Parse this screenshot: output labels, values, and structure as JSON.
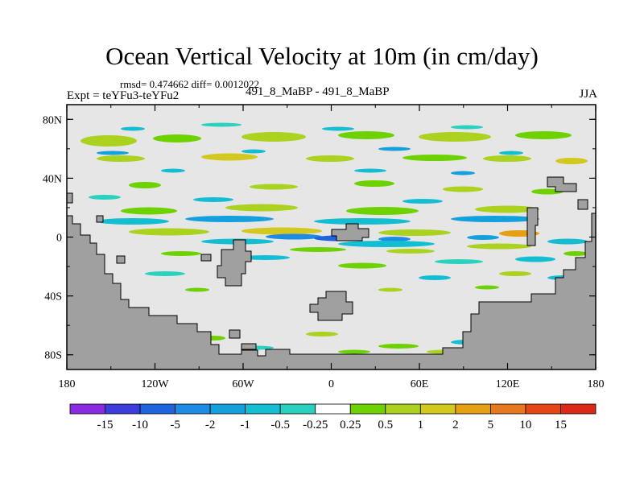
{
  "title": "Ocean Vertical Velocity at 10m (in cm/day)",
  "stats": "rmsd= 0.474662 diff= 0.0012022",
  "experiment": "Expt = teYFu3-teYFu2",
  "runs": "491_8_MaBP - 491_8_MaBP",
  "season": "JJA",
  "axes": {
    "y_ticks": [
      {
        "label": "80N",
        "lat": 80
      },
      {
        "label": "40N",
        "lat": 40
      },
      {
        "label": "0",
        "lat": 0
      },
      {
        "label": "40S",
        "lat": -40
      },
      {
        "label": "80S",
        "lat": -80
      }
    ],
    "x_ticks": [
      {
        "label": "180",
        "lon": -180
      },
      {
        "label": "120W",
        "lon": -120
      },
      {
        "label": "60W",
        "lon": -60
      },
      {
        "label": "0",
        "lon": 0
      },
      {
        "label": "60E",
        "lon": 60
      },
      {
        "label": "120E",
        "lon": 120
      },
      {
        "label": "180",
        "lon": 180
      }
    ],
    "lat_range": [
      -90,
      90
    ],
    "lon_range": [
      -180,
      180
    ]
  },
  "colorbar": {
    "labels": [
      "-15",
      "-10",
      "-5",
      "-2",
      "-1",
      "-0.5",
      "-0.25",
      "0.25",
      "0.5",
      "1",
      "2",
      "5",
      "10",
      "15"
    ],
    "colors": [
      "#8a2be2",
      "#3c3cdc",
      "#1e64dc",
      "#1e8ce6",
      "#14a0dc",
      "#14bed2",
      "#28d2be",
      "#ffffff",
      "#6ed200",
      "#aad21e",
      "#d2c81e",
      "#e6a014",
      "#e6781e",
      "#e64614",
      "#dc2814"
    ]
  },
  "colors": {
    "land": "#a0a0a0",
    "ocean_background": "#e6e6e6",
    "neutral": "#ffffff"
  }
}
